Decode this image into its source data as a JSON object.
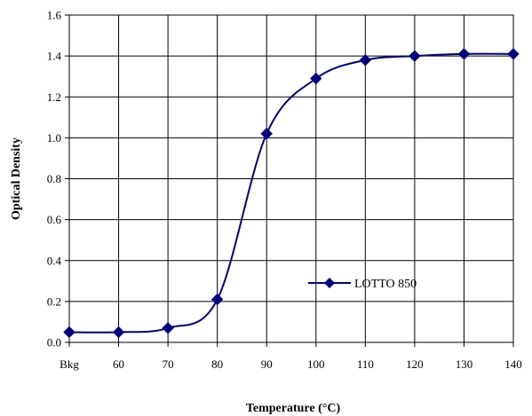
{
  "chart_data": {
    "type": "line",
    "title": "",
    "xlabel": "Temperature (°C)",
    "ylabel": "Optical Density",
    "categories": [
      "Bkg",
      "60",
      "70",
      "80",
      "90",
      "100",
      "110",
      "120",
      "130",
      "140"
    ],
    "ylim": [
      0,
      1.6
    ],
    "yticks": [
      "0.0",
      "0.2",
      "0.4",
      "0.6",
      "0.8",
      "1.0",
      "1.2",
      "1.4",
      "1.6"
    ],
    "grid": true,
    "legend_position": "lower-right",
    "series": [
      {
        "name": "LOTTO 850",
        "color": "#00007f",
        "marker": "diamond",
        "values": [
          0.05,
          0.05,
          0.07,
          0.21,
          1.02,
          1.29,
          1.38,
          1.4,
          1.41,
          1.41
        ]
      }
    ]
  }
}
